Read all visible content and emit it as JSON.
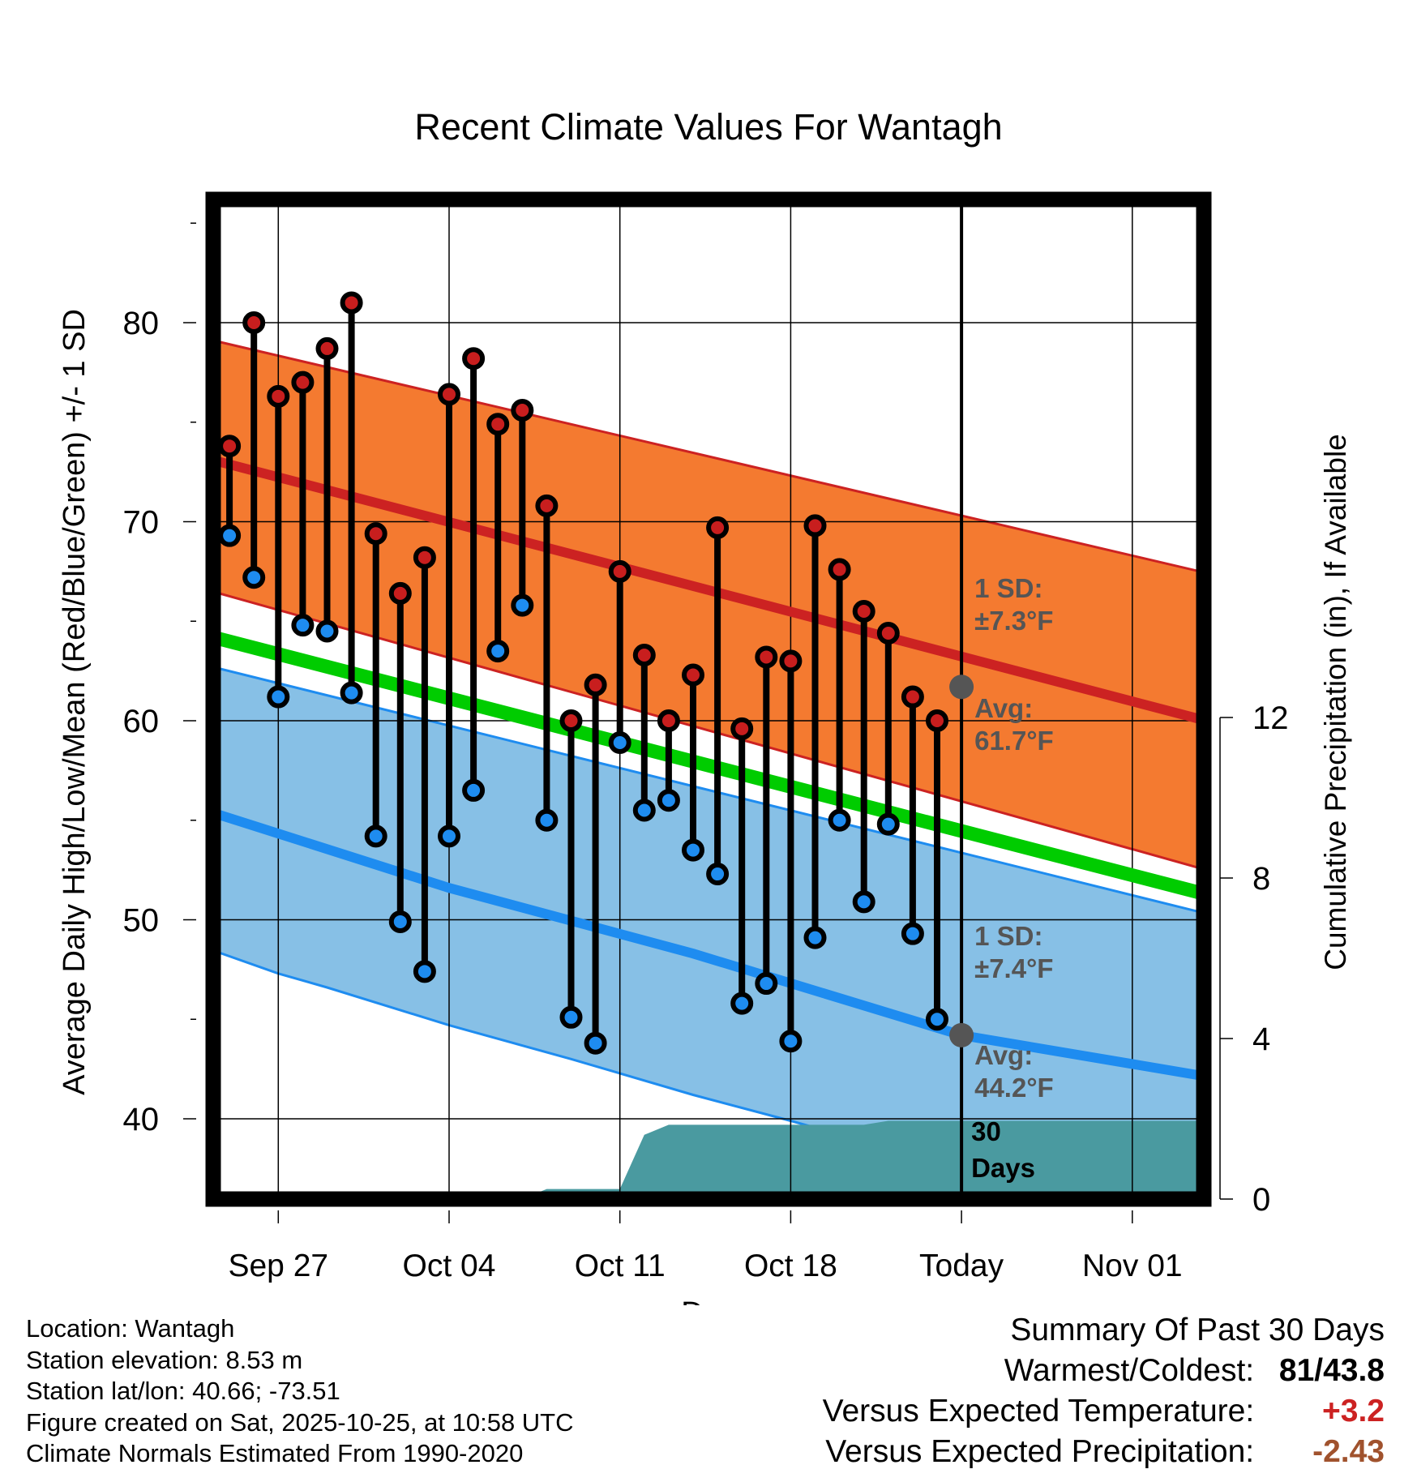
{
  "chart_data": {
    "type": "line",
    "title": "Recent Climate Values For Wantagh",
    "xlabel": "Day",
    "ylabel": "Average Daily High/Low/Mean (Red/Blue/Green) +/- 1 SD",
    "y2label": "Cumulative Precipitation (in), If Available",
    "ylim": [
      36,
      86
    ],
    "y_ticks": [
      40,
      50,
      60,
      70,
      80
    ],
    "y2lim": [
      0,
      24
    ],
    "y2_ticks": [
      0,
      4,
      8,
      12
    ],
    "xlim": [
      0,
      46
    ],
    "x_ticks": [
      {
        "day": 3,
        "label": "Sep 27"
      },
      {
        "day": 10,
        "label": "Oct 04"
      },
      {
        "day": 17,
        "label": "Oct 11"
      },
      {
        "day": 24,
        "label": "Oct 18"
      },
      {
        "day": 31,
        "label": "Today"
      },
      {
        "day": 38,
        "label": "Nov 01"
      }
    ],
    "today_day": 31,
    "normals": {
      "high_mean": [
        [
          0,
          73.2
        ],
        [
          46,
          58.4
        ]
      ],
      "high_upper": [
        [
          0,
          79.2
        ],
        [
          46,
          66.0
        ]
      ],
      "high_lower": [
        [
          0,
          66.6
        ],
        [
          46,
          50.8
        ]
      ],
      "mean": [
        [
          0,
          64.3
        ],
        [
          46,
          49.7
        ]
      ],
      "low_mean": [
        [
          0,
          55.5
        ],
        [
          10,
          51.6
        ],
        [
          20,
          48.3
        ],
        [
          31,
          44.2
        ],
        [
          46,
          41.1
        ]
      ],
      "low_upper": [
        [
          0,
          62.8
        ],
        [
          46,
          48.8
        ]
      ],
      "low_lower": [
        [
          0,
          48.6
        ],
        [
          3,
          47.3
        ],
        [
          5,
          46.6
        ],
        [
          10,
          44.7
        ],
        [
          15,
          43.0
        ],
        [
          20,
          41.2
        ],
        [
          24,
          39.9
        ],
        [
          31,
          37.5
        ],
        [
          40,
          35.0
        ],
        [
          46,
          33.7
        ]
      ]
    },
    "daily": [
      {
        "day": 1,
        "high": 73.8,
        "low": 69.3
      },
      {
        "day": 2,
        "high": 80.0,
        "low": 67.2
      },
      {
        "day": 3,
        "high": 76.3,
        "low": 61.2
      },
      {
        "day": 4,
        "high": 77.0,
        "low": 64.8
      },
      {
        "day": 5,
        "high": 78.7,
        "low": 64.5
      },
      {
        "day": 6,
        "high": 81.0,
        "low": 61.4
      },
      {
        "day": 7,
        "high": 69.4,
        "low": 54.2
      },
      {
        "day": 8,
        "high": 66.4,
        "low": 49.9
      },
      {
        "day": 9,
        "high": 68.2,
        "low": 47.4
      },
      {
        "day": 10,
        "high": 76.4,
        "low": 54.2
      },
      {
        "day": 11,
        "high": 78.2,
        "low": 56.5
      },
      {
        "day": 12,
        "high": 74.9,
        "low": 63.5
      },
      {
        "day": 13,
        "high": 75.6,
        "low": 65.8
      },
      {
        "day": 14,
        "high": 70.8,
        "low": 55.0
      },
      {
        "day": 15,
        "high": 60.0,
        "low": 45.1
      },
      {
        "day": 16,
        "high": 61.8,
        "low": 43.8
      },
      {
        "day": 17,
        "high": 67.5,
        "low": 58.9
      },
      {
        "day": 18,
        "high": 63.3,
        "low": 55.5
      },
      {
        "day": 19,
        "high": 60.0,
        "low": 56.0
      },
      {
        "day": 20,
        "high": 62.3,
        "low": 53.5
      },
      {
        "day": 21,
        "high": 69.7,
        "low": 52.3
      },
      {
        "day": 22,
        "high": 59.6,
        "low": 45.8
      },
      {
        "day": 23,
        "high": 63.2,
        "low": 46.8
      },
      {
        "day": 24,
        "high": 63.0,
        "low": 43.9
      },
      {
        "day": 25,
        "high": 69.8,
        "low": 49.1
      },
      {
        "day": 26,
        "high": 67.6,
        "low": 55.0
      },
      {
        "day": 27,
        "high": 65.5,
        "low": 50.9
      },
      {
        "day": 28,
        "high": 64.4,
        "low": 54.8
      },
      {
        "day": 29,
        "high": 61.2,
        "low": 49.3
      },
      {
        "day": 30,
        "high": 60.0,
        "low": 45.0
      }
    ],
    "precip_cumulative": [
      [
        13,
        0
      ],
      [
        14,
        0.25
      ],
      [
        17,
        0.25
      ],
      [
        18,
        1.6
      ],
      [
        19,
        1.85
      ],
      [
        27,
        1.85
      ],
      [
        28,
        1.95
      ],
      [
        31,
        1.95
      ],
      [
        46,
        1.95
      ]
    ],
    "annotations": {
      "high_sd": "1 SD:\n±7.3°F",
      "high_avg": "Avg:\n61.7°F",
      "low_sd": "1 SD:\n±7.4°F",
      "low_avg": "Avg:\n44.2°F",
      "precip_window": "30\nDays"
    },
    "today_high_avg": 61.7,
    "today_low_avg": 44.2,
    "colors": {
      "high_band": "#f47a30",
      "high_line": "#cc2222",
      "low_band": "#87c0e6",
      "low_line": "#1e8cf0",
      "mean_line": "#00cc00",
      "precip": "#4a9aa0",
      "high_dot": "#c81e1e",
      "low_dot": "#1e8cf0",
      "annotation": "#555555"
    }
  },
  "footer": {
    "location": "Location: Wantagh",
    "elevation": "Station elevation: 8.53 m",
    "latlon": "Station lat/lon: 40.66; -73.51",
    "created": "Figure created on Sat, 2025-10-25, at 10:58 UTC",
    "normals": "Climate Normals Estimated From 1990-2020"
  },
  "summary": {
    "title": "Summary Of Past 30 Days",
    "warmest_label": "Warmest/Coldest:",
    "warmest_value": "81/43.8",
    "temp_label": "Versus Expected Temperature:",
    "temp_value": "+3.2",
    "temp_color": "#cc2222",
    "precip_label": "Versus Expected Precipitation:",
    "precip_value": "-2.43",
    "precip_color": "#a0522d"
  }
}
